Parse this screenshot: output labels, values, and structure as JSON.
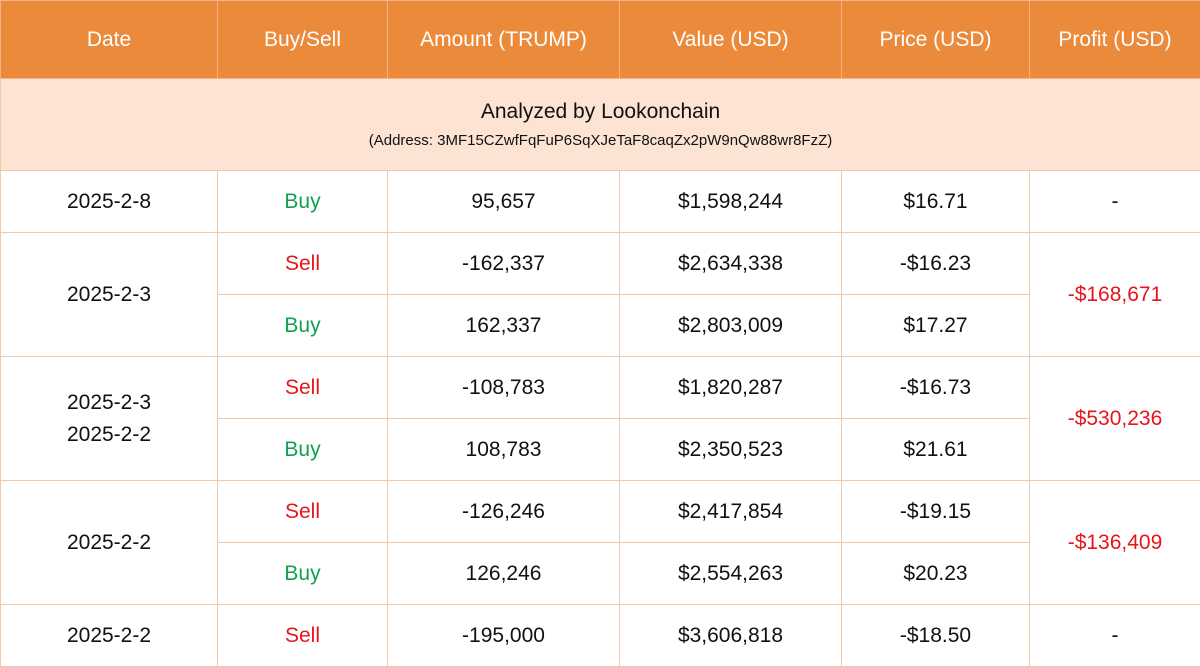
{
  "table": {
    "headers": [
      "Date",
      "Buy/Sell",
      "Amount (TRUMP)",
      "Value (USD)",
      "Price (USD)",
      "Profit (USD)"
    ],
    "banner_title": "Analyzed by Lookonchain",
    "banner_address": "(Address: 3MF15CZwfFqFuP6SqXJeTaF8caqZx2pW9nQw88wr8FzZ)",
    "groups": [
      {
        "dates": [
          "2025-2-8"
        ],
        "profit": "-",
        "rows": [
          {
            "side": "Buy",
            "amount": "95,657",
            "value": "$1,598,244",
            "price": "$16.71"
          }
        ]
      },
      {
        "dates": [
          "2025-2-3"
        ],
        "profit": "-$168,671",
        "rows": [
          {
            "side": "Sell",
            "amount": "-162,337",
            "value": "$2,634,338",
            "price": "-$16.23"
          },
          {
            "side": "Buy",
            "amount": "162,337",
            "value": "$2,803,009",
            "price": "$17.27"
          }
        ]
      },
      {
        "dates": [
          "2025-2-3",
          "2025-2-2"
        ],
        "profit": "-$530,236",
        "rows": [
          {
            "side": "Sell",
            "amount": "-108,783",
            "value": "$1,820,287",
            "price": "-$16.73"
          },
          {
            "side": "Buy",
            "amount": "108,783",
            "value": "$2,350,523",
            "price": "$21.61"
          }
        ]
      },
      {
        "dates": [
          "2025-2-2"
        ],
        "profit": "-$136,409",
        "rows": [
          {
            "side": "Sell",
            "amount": "-126,246",
            "value": "$2,417,854",
            "price": "-$19.15"
          },
          {
            "side": "Buy",
            "amount": "126,246",
            "value": "$2,554,263",
            "price": "$20.23"
          }
        ]
      },
      {
        "dates": [
          "2025-2-2"
        ],
        "profit": "-",
        "rows": [
          {
            "side": "Sell",
            "amount": "-195,000",
            "value": "$3,606,818",
            "price": "-$18.50"
          }
        ]
      }
    ]
  },
  "colors": {
    "header_bg": "#ec8a3c",
    "banner_bg": "#fde3d3",
    "buy": "#12a150",
    "sell": "#e8141c",
    "border": "#f2c9a8"
  }
}
